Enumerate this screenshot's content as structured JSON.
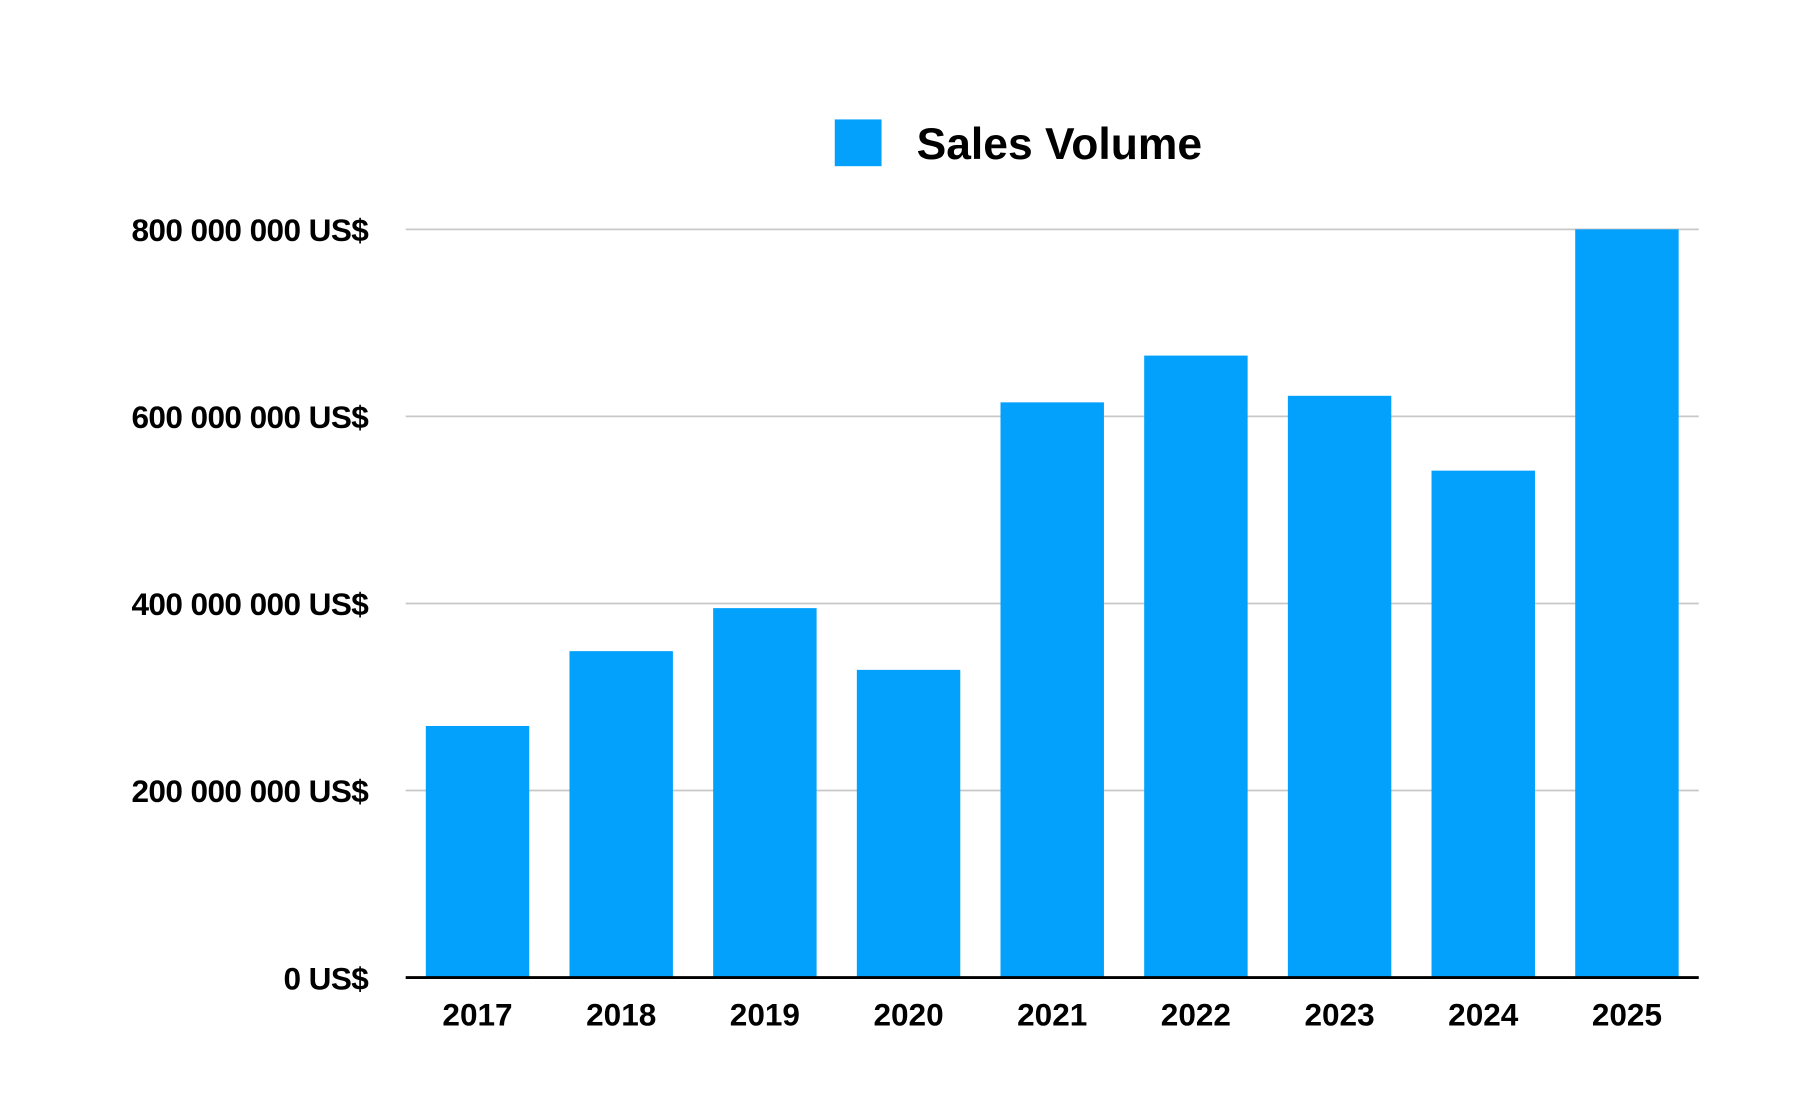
{
  "chart_data": {
    "type": "bar",
    "title": "",
    "xlabel": "",
    "ylabel": "",
    "categories": [
      "2017",
      "2018",
      "2019",
      "2020",
      "2021",
      "2022",
      "2023",
      "2024",
      "2025"
    ],
    "series": [
      {
        "name": "Sales Volume",
        "color": "#03a1fc",
        "values": [
          269000000,
          349000000,
          395000000,
          329000000,
          615000000,
          665000000,
          622000000,
          542000000,
          800000000
        ]
      }
    ],
    "ylim": [
      0,
      800000000
    ],
    "yticks": [
      0,
      200000000,
      400000000,
      600000000,
      800000000
    ],
    "ytick_labels": [
      "0 US$",
      "200 000 000 US$",
      "400 000 000 US$",
      "600 000 000 US$",
      "800 000 000 US$"
    ],
    "grid": true,
    "legend_position": "top-center",
    "colors": {
      "bar": "#03a1fc",
      "grid": "#c8c8c8",
      "axis": "#000000",
      "text": "#000000"
    }
  }
}
